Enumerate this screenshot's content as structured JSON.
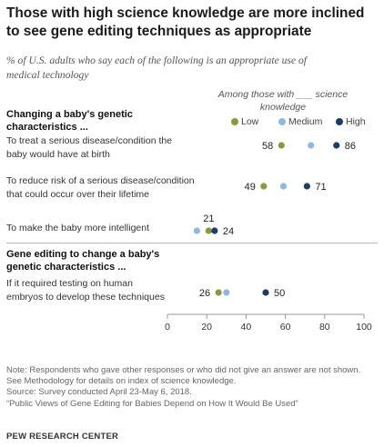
{
  "title_line1": "Those with high science knowledge are more inclined",
  "title_line2": "to see gene editing techniques as appropriate",
  "subtitle_line1": "% of U.S. adults who say each of the following is an appropriate use of",
  "subtitle_line2": "medical technology",
  "legend_caption_line1": "Among those with ___ science",
  "legend_caption_line2": "knowledge",
  "legend": [
    {
      "label": "Low",
      "color": "#8a9a3b"
    },
    {
      "label": "Medium",
      "color": "#8fb8de"
    },
    {
      "label": "High",
      "color": "#1c3e63"
    }
  ],
  "section1_line1": "Changing a baby's genetic",
  "section1_line2": "characteristics ...",
  "section2_line1": "Gene editing to change a baby's",
  "section2_line2": "genetic characteristics ...",
  "rows": [
    {
      "line1": "To treat a serious disease/condition the",
      "line2": "baby would have at birth"
    },
    {
      "line1": "To reduce risk of a serious disease/condition",
      "line2": "that could occur over their lifetime"
    },
    {
      "line1": "To make the baby more intelligent",
      "line2": ""
    },
    {
      "line1": "If it required testing on human",
      "line2": "embryos to develop these techniques"
    }
  ],
  "notes": [
    "Note: Respondents who gave other responses or who did not give an answer are not shown.",
    "See Methodology for details on index of science knowledge.",
    "Source: Survey conducted April 23-May 6, 2018.",
    "“Public Views of Gene Editing for Babies Depend on How It Would Be Used”"
  ],
  "source_org": "PEW RESEARCH CENTER",
  "chart_data": {
    "type": "scatter",
    "xlim": [
      0,
      100
    ],
    "x_ticks": [
      "0",
      "20",
      "40",
      "60",
      "80",
      "100"
    ],
    "categories": [
      "To treat a serious disease/condition the baby would have at birth",
      "To reduce risk of a serious disease/condition that could occur over their lifetime",
      "To make the baby more intelligent",
      "If it required testing on human embryos to develop these techniques"
    ],
    "series": [
      {
        "name": "Low",
        "color": "#8a9a3b",
        "values": [
          58,
          49,
          21,
          26
        ]
      },
      {
        "name": "Medium",
        "color": "#8fb8de",
        "values": [
          73,
          59,
          15,
          30
        ]
      },
      {
        "name": "High",
        "color": "#1c3e63",
        "values": [
          86,
          71,
          24,
          50
        ]
      }
    ],
    "data_labels": [
      {
        "row": 0,
        "low": "58",
        "high": "86"
      },
      {
        "row": 1,
        "low": "49",
        "high": "71"
      },
      {
        "row": 2,
        "low": "21",
        "high": "24"
      },
      {
        "row": 3,
        "low": "26",
        "high": "50"
      }
    ]
  }
}
